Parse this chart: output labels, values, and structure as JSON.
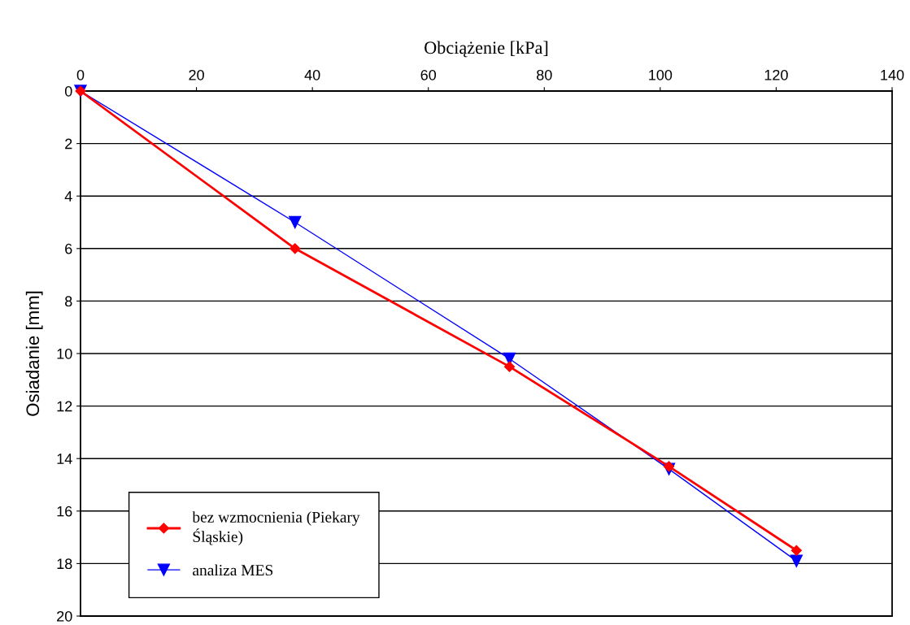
{
  "chart_data": {
    "type": "line",
    "xlabel": "Obciążenie [kPa]",
    "ylabel": "Osiadanie [mm]",
    "xlim": [
      0,
      140
    ],
    "xticks": [
      0,
      20,
      40,
      60,
      80,
      100,
      120,
      140
    ],
    "ylim": [
      20,
      0
    ],
    "yticks": [
      0,
      2,
      4,
      6,
      8,
      10,
      12,
      14,
      16,
      18,
      20
    ],
    "grid": "y",
    "legend": "bottom left",
    "series": [
      {
        "name": "bez wzmocnienia (Piekary\nŚląskie)",
        "color": "#ff0000",
        "marker": "diamond",
        "x": [
          0,
          37,
          74,
          101.5,
          123.5
        ],
        "values": [
          0,
          6.0,
          10.5,
          14.3,
          17.5
        ]
      },
      {
        "name": "analiza MES",
        "color": "#0000ff",
        "marker": "triangle",
        "x": [
          0,
          37,
          74,
          101.5,
          123.5
        ],
        "values": [
          0,
          5.0,
          10.2,
          14.4,
          17.9
        ]
      }
    ]
  }
}
